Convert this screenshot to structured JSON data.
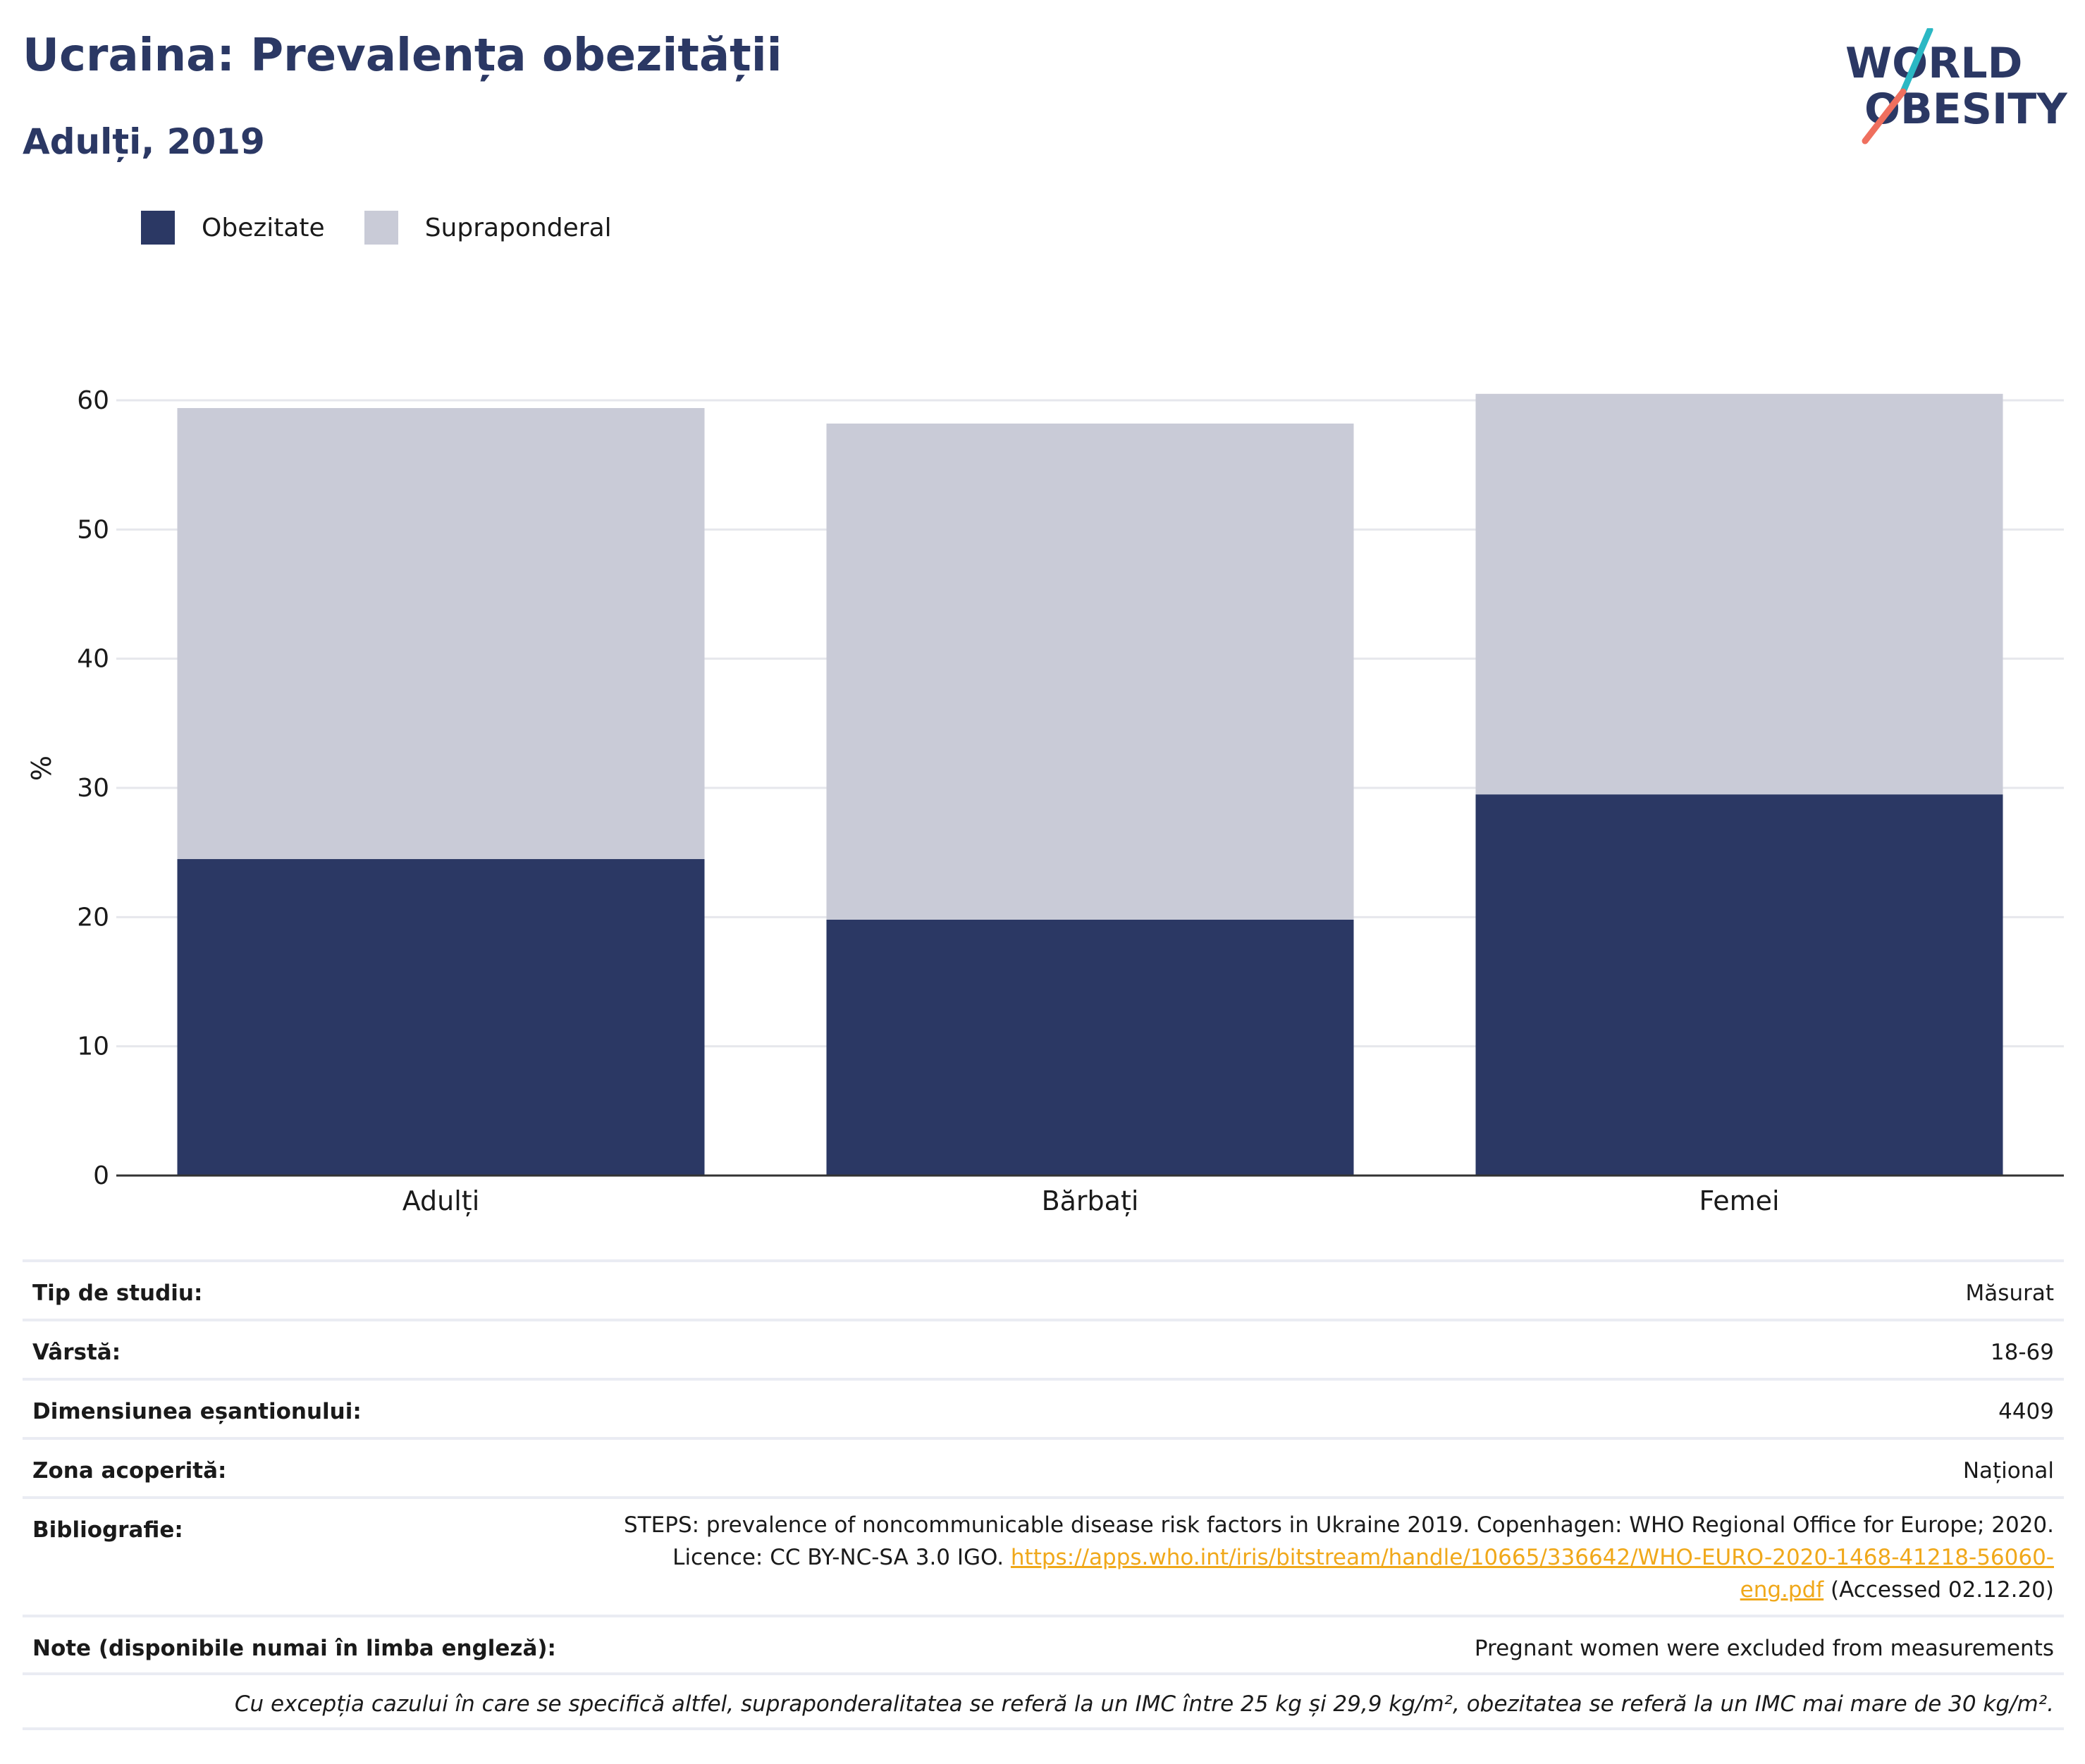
{
  "header": {
    "title": "Ucraina: Prevalența obezității",
    "subtitle": "Adulți, 2019"
  },
  "logo": {
    "line1": "WORLD",
    "line2": "OBESITY",
    "accent_teal": "#2bb8c4",
    "accent_coral": "#ef6f5e"
  },
  "colors": {
    "obesity": "#2b3864",
    "overweight": "#c9cbd7",
    "axis": "#333333",
    "grid": "#e6e7ec",
    "link": "#f0a81a",
    "title": "#2b3864"
  },
  "chart_data": {
    "type": "bar",
    "stacked": true,
    "title": "",
    "xlabel": "",
    "ylabel": "%",
    "ylim": [
      0,
      60
    ],
    "yticks": [
      0,
      10,
      20,
      30,
      40,
      50,
      60
    ],
    "grid": true,
    "legend_position": "top-left",
    "categories": [
      "Adulți",
      "Bărbați",
      "Femei"
    ],
    "series": [
      {
        "name": "Obezitate",
        "values": [
          24.5,
          19.8,
          29.5
        ]
      },
      {
        "name": "Supraponderal",
        "values": [
          34.9,
          38.4,
          31.0
        ]
      }
    ]
  },
  "info": {
    "rows": [
      {
        "label": "Tip de studiu:",
        "value": "Măsurat"
      },
      {
        "label": "Vârstă:",
        "value": "18-69"
      },
      {
        "label": "Dimensiunea eșantionului:",
        "value": "4409"
      },
      {
        "label": "Zona acoperită:",
        "value": "Național"
      }
    ],
    "bibliography": {
      "label": "Bibliografie:",
      "line1": "STEPS: prevalence of noncommunicable disease risk factors in Ukraine 2019. Copenhagen: WHO Regional Office for Europe; 2020.",
      "prefix": "Licence: CC BY-NC-SA 3.0 IGO.",
      "link_part1": "https://apps.who.int/iris/bitstream/handle/10665/336642/WHO-EURO-2020-1468-41218-56060-",
      "link_part2": "eng.pdf",
      "suffix": "(Accessed 02.12.20)"
    },
    "notes": {
      "label": "Note (disponibile numai în limba engleză):",
      "value": "Pregnant women were excluded from measurements"
    },
    "footnote": "Cu excepția cazului în care se specifică altfel, supraponderalitatea se referă la un IMC între 25 kg și 29,9 kg/m², obezitatea se referă la un IMC mai mare de 30 kg/m²."
  }
}
